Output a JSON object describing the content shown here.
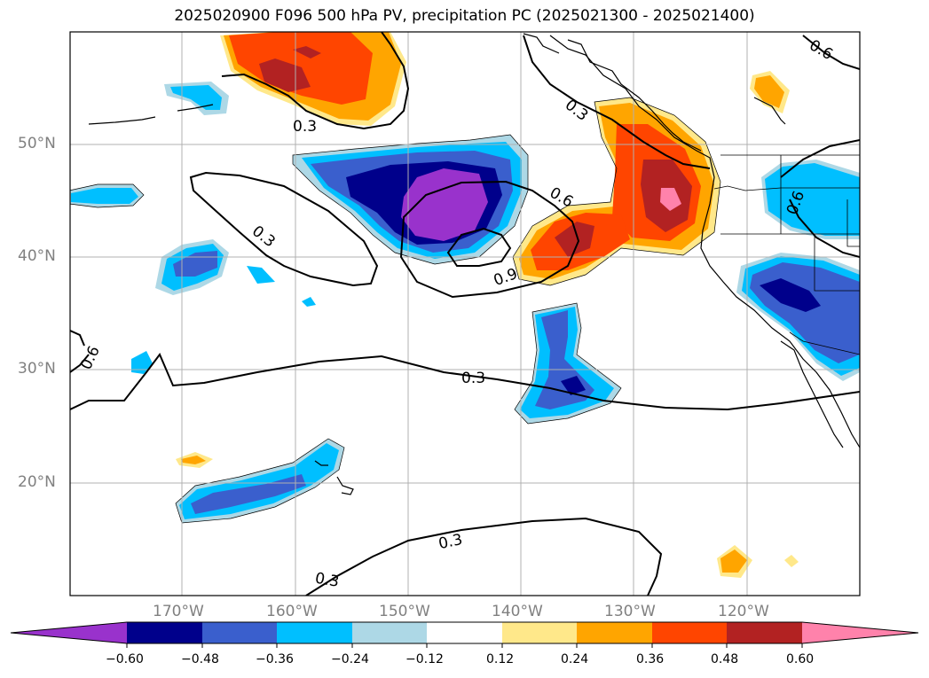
{
  "title": "2025020900 F096 500 hPa PV, precipitation PC (2025021300 - 2025021400)",
  "lat_labels": [
    "50°N",
    "40°N",
    "30°N",
    "20°N"
  ],
  "lon_labels": [
    "170°W",
    "160°W",
    "150°W",
    "140°W",
    "130°W",
    "120°W"
  ],
  "colorbar": {
    "tick_labels": [
      "−0.60",
      "−0.48",
      "−0.36",
      "−0.24",
      "−0.12",
      "0.12",
      "0.24",
      "0.36",
      "0.48",
      "0.60"
    ],
    "colors": [
      "#9932cc",
      "#00008b",
      "#3a5fcd",
      "#00bfff",
      "#add8e6",
      "#ffffff",
      "#ffe88a",
      "#ffa500",
      "#ff4500",
      "#b22222",
      "#ff82ab"
    ]
  },
  "contour_labels": [
    "0.3",
    "0.3",
    "0.3",
    "0.3",
    "0.3",
    "0.3",
    "0.6",
    "0.6",
    "0.6",
    "0.6",
    "0.9"
  ],
  "map_extent": {
    "lon_min": -180,
    "lon_max": -110,
    "lat_min": 10,
    "lat_max": 60
  },
  "grid": true
}
